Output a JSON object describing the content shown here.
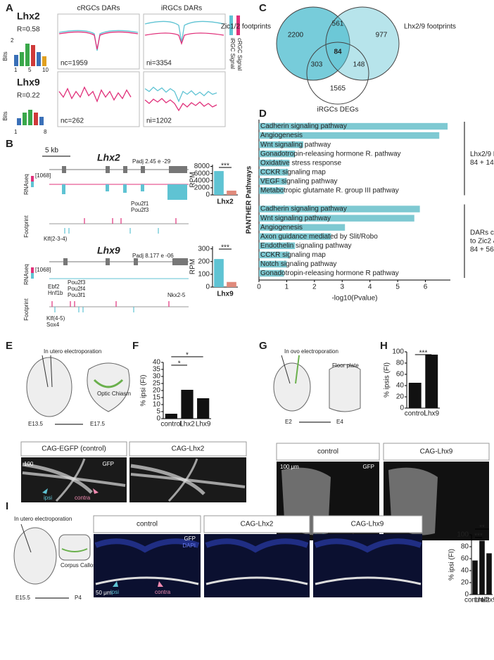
{
  "panel_labels": [
    "A",
    "B",
    "C",
    "D",
    "E",
    "F",
    "G",
    "H",
    "I",
    "J"
  ],
  "A": {
    "col_titles": [
      "cRGCs DARs",
      "iRGCs DARs"
    ],
    "legend": [
      "iRGC Signal",
      "cRGC Signal"
    ],
    "rows": [
      {
        "gene": "Lhx2",
        "r": "R=0.58",
        "nc": "nc=1959",
        "ni": "ni=3354",
        "bits": "Bits",
        "ticks": [
          "2",
          "1",
          "5",
          "10"
        ]
      },
      {
        "gene": "Lhx9",
        "r": "R=0.22",
        "nc": "nc=262",
        "ni": "ni=1202",
        "bits": "Bits",
        "ticks": [
          "1",
          "8"
        ]
      }
    ]
  },
  "B": {
    "scale": "5 kb",
    "tracks": [
      "RNAseq",
      "Footprint",
      "RNAseq",
      "Footprint"
    ],
    "range": [
      "[1068]",
      "[1068]"
    ],
    "genes": [
      {
        "name": "Lhx2",
        "padj": "Padj 2.45 e -29",
        "factors": [
          "Pou2f1",
          "Pou2f3",
          "Klf(2-3-4)"
        ]
      },
      {
        "name": "Lhx9",
        "padj": "Padj 8.177 e -06",
        "factors": [
          "Ebf2",
          "Hnf1b",
          "Pou2f3",
          "Pou2f4",
          "Pou3f1",
          "Nkx2-5",
          "Klf(4-5)",
          "Sox4"
        ]
      }
    ]
  },
  "C": {
    "sets": [
      "Zic1/2 footprints",
      "Lhx2/9 footprints",
      "iRGCs DEGs"
    ],
    "counts": [
      "2200",
      "561",
      "977",
      "84",
      "303",
      "148",
      "1565"
    ]
  },
  "E": {
    "method": "In utero electroporation",
    "target": "Optic Chiasm",
    "stages": [
      "E13.5",
      "E17.5"
    ],
    "images": [
      "CAG-EGFP (control)",
      "CAG-Lhx2"
    ],
    "scale": "100",
    "stain": "GFP",
    "arrows": [
      "ipsi",
      "contra"
    ]
  },
  "G": {
    "method": "In ovo electroporation",
    "target": "Floor plate",
    "stages": [
      "E2",
      "E4"
    ],
    "images": [
      "control",
      "CAG-Lhx9"
    ],
    "scale": "100 μm",
    "stain": "GFP",
    "arrows": [
      "ipsi",
      "contra"
    ]
  },
  "I": {
    "method": "In utero electroporation",
    "target": "Corpus Callosum",
    "stages": [
      "E15.5",
      "P4"
    ],
    "images": [
      "control",
      "CAG-Lhx2",
      "CAG-Lhx9"
    ],
    "stain": [
      "GFP",
      "DAPI"
    ],
    "scale": "50 μm",
    "arrows": [
      "ipsi",
      "contra"
    ]
  },
  "chart_data": [
    {
      "type": "bar",
      "categories": [
        null,
        null
      ],
      "values": [
        6700,
        1200
      ],
      "colors": [
        "#5fc3d3",
        "#e08a7c"
      ],
      "ylim": [
        0,
        8500
      ],
      "yticks": [
        0,
        2000,
        4000,
        6000,
        8000
      ],
      "ylabel": "RPM",
      "xlabel": "Lhx2",
      "annotations": [
        "***"
      ]
    },
    {
      "type": "bar",
      "categories": [
        null,
        null
      ],
      "values": [
        220,
        40
      ],
      "colors": [
        "#5fc3d3",
        "#e08a7c"
      ],
      "ylim": [
        0,
        320
      ],
      "yticks": [
        0,
        100,
        200,
        300
      ],
      "ylabel": "RPM",
      "xlabel": "Lhx9",
      "annotations": [
        "***"
      ]
    },
    {
      "type": "bar",
      "orientation": "horizontal",
      "color": "#7ec9d2",
      "xlim": [
        0,
        6.9
      ],
      "xticks": [
        0,
        1,
        2,
        3,
        4,
        5,
        6
      ],
      "xlabel": "-log10(Pvalue)",
      "ylabel": "PANTHER Pathways",
      "groups": [
        {
          "label": [
            "Lhx2/9 DEG",
            "84 + 148"
          ],
          "categories": [
            "Cadherin signaling pathway",
            "Angiogenesis",
            "Wnt signaling pathway",
            "Gonadotropin-releasing hormone R. pathway",
            "Oxidative stress response",
            "CCKR signaling map",
            "VEGF signaling pathway",
            "Metabotropic glutamate R. group III pathway"
          ],
          "values": [
            6.8,
            6.5,
            1.6,
            1.3,
            1.1,
            1.05,
            1.0,
            0.9
          ]
        },
        {
          "label": [
            "DARs common",
            "to Zic2 & Lhx2/9",
            "84 + 561"
          ],
          "categories": [
            "Cadherin signaling pathway",
            "Wnt signaling pathway",
            "Angiogenesis",
            "Axon guidance mediated by Slit/Robo",
            "Endothelin signaling pathway",
            "CCKR signaling map",
            "Notch signaling pathway",
            "Gonadotropin-releasing hormone R pathway"
          ],
          "values": [
            5.8,
            5.6,
            3.1,
            2.6,
            1.3,
            1.1,
            1.0,
            0.9
          ]
        }
      ]
    },
    {
      "type": "bar",
      "categories": [
        "control",
        "Lhx2",
        "Lhx9"
      ],
      "values": [
        3.5,
        20.5,
        14.5
      ],
      "color": "#111111",
      "ylim": [
        0,
        40
      ],
      "yticks": [
        0,
        5,
        10,
        15,
        20,
        25,
        30,
        35,
        40
      ],
      "ylabel": "% ipsi (FI)",
      "annotations": [
        "*",
        "*"
      ]
    },
    {
      "type": "bar",
      "categories": [
        "control",
        "Lhx9"
      ],
      "values": [
        45,
        95
      ],
      "color": "#111111",
      "ylim": [
        0,
        100
      ],
      "yticks": [
        0,
        20,
        40,
        60,
        80,
        100
      ],
      "ylabel": "% ipsis (FI)",
      "annotations": [
        "***"
      ]
    },
    {
      "type": "bar",
      "categories": [
        "control",
        "Lhx2",
        "Lhx9"
      ],
      "values": [
        57,
        90,
        69
      ],
      "color": "#111111",
      "ylim": [
        0,
        100
      ],
      "yticks": [
        0,
        20,
        40,
        60,
        80,
        100
      ],
      "ylabel": "% ipsi (FI)",
      "annotations": [
        "***",
        "**"
      ]
    }
  ]
}
